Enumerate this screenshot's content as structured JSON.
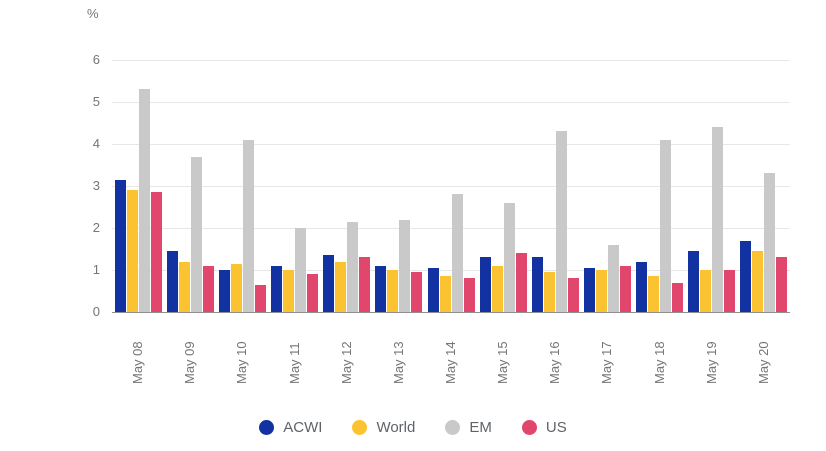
{
  "chart_data": {
    "type": "bar",
    "title": "",
    "unit_label": "%",
    "xlabel": "",
    "ylabel": "%",
    "ylim": [
      0,
      6
    ],
    "yticks": [
      0,
      1,
      2,
      3,
      4,
      5,
      6
    ],
    "grid": true,
    "legend_position": "bottom",
    "categories": [
      "May 08",
      "May 09",
      "May 10",
      "May 11",
      "May 12",
      "May 13",
      "May 14",
      "May 15",
      "May 16",
      "May 17",
      "May 18",
      "May 19",
      "May 20"
    ],
    "series": [
      {
        "name": "ACWI",
        "color": "#1232a2",
        "values": [
          3.15,
          1.45,
          1.0,
          1.1,
          1.35,
          1.1,
          1.05,
          1.3,
          1.3,
          1.05,
          1.2,
          1.45,
          1.7
        ]
      },
      {
        "name": "World",
        "color": "#fbc332",
        "values": [
          2.9,
          1.2,
          1.15,
          1.0,
          1.2,
          1.0,
          0.85,
          1.1,
          0.95,
          1.0,
          0.85,
          1.0,
          1.45
        ]
      },
      {
        "name": "EM",
        "color": "#c9c9c9",
        "values": [
          5.3,
          3.7,
          4.1,
          2.0,
          2.15,
          2.2,
          2.8,
          2.6,
          4.3,
          1.6,
          4.1,
          4.4,
          3.3
        ]
      },
      {
        "name": "US",
        "color": "#e1476c",
        "values": [
          2.85,
          1.1,
          0.65,
          0.9,
          1.3,
          0.95,
          0.8,
          1.4,
          0.8,
          1.1,
          0.7,
          1.0,
          1.3
        ]
      }
    ]
  },
  "colors": {
    "background": "#ffffff",
    "grid_line": "#e7e7e7",
    "axis_line": "#8f8f8f",
    "tick_label": "#757575",
    "legend_text": "#5f6368"
  }
}
